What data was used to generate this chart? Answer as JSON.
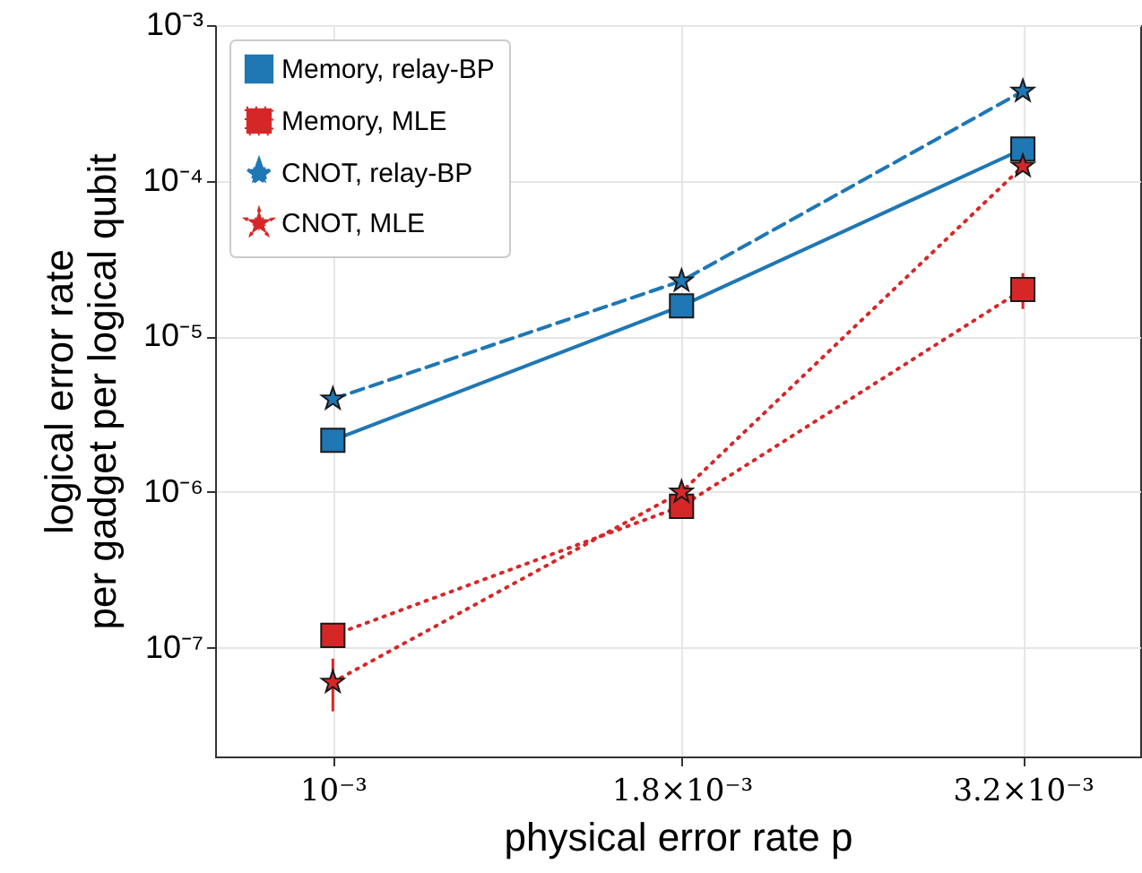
{
  "chart_data": {
    "type": "line",
    "xlabel": "physical error rate p",
    "ylabel": "logical error rate\nper gadget per logical qubit",
    "x": [
      0.001,
      0.0018,
      0.0032
    ],
    "log": "xy",
    "xlim": [
      0.00082,
      0.0039
    ],
    "xticks": [
      {
        "value": 0.001,
        "label": "10⁻³"
      },
      {
        "value": 0.0018,
        "label": "1.8×10⁻³"
      },
      {
        "value": 0.0032,
        "label": "3.2×10⁻³"
      }
    ],
    "ylim": [
      2e-08,
      0.001
    ],
    "yticks": [
      {
        "value": 1e-07,
        "label": "10⁻⁷"
      },
      {
        "value": 1e-06,
        "label": "10⁻⁶"
      },
      {
        "value": 1e-05,
        "label": "10⁻⁵"
      },
      {
        "value": 0.0001,
        "label": "10⁻⁴"
      },
      {
        "value": 0.001,
        "label": "10⁻³"
      }
    ],
    "grid": true,
    "legend": "top left",
    "series": [
      {
        "name": "Memory, relay-BP",
        "color": "#1f77b4",
        "marker": "square",
        "line_style": "solid",
        "values": [
          2.15e-06,
          1.57e-05,
          0.00016
        ]
      },
      {
        "name": "Memory, MLE",
        "color": "#d62728",
        "marker": "square",
        "line_style": "dotted",
        "values": [
          1.2e-07,
          8.1e-07,
          2e-05
        ],
        "errors": [
          null,
          null,
          [
            1.5e-05,
            2.55e-05
          ]
        ]
      },
      {
        "name": "CNOT, relay-BP",
        "color": "#1f77b4",
        "marker": "star",
        "line_style": "dashed",
        "values": [
          3.96e-06,
          2.27e-05,
          0.000376
        ]
      },
      {
        "name": "CNOT, MLE",
        "color": "#d62728",
        "marker": "star",
        "line_style": "dotted",
        "values": [
          6e-08,
          1e-06,
          0.000124
        ],
        "errors": [
          [
            3.9e-08,
            8.5e-08
          ],
          null,
          null
        ]
      }
    ]
  }
}
